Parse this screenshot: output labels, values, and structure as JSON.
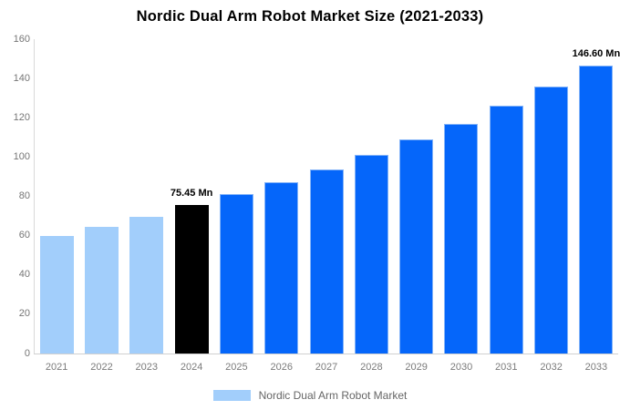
{
  "title": "Nordic Dual Arm Robot Market Size (2021-2033)",
  "chart_data": {
    "type": "bar",
    "title": "Nordic Dual Arm Robot Market Size (2021-2033)",
    "xlabel": "",
    "ylabel": "",
    "ylim": [
      0,
      160
    ],
    "yticks": [
      0,
      20,
      40,
      60,
      80,
      100,
      120,
      140,
      160
    ],
    "grid": false,
    "legend_position": "bottom-center",
    "categories": [
      "2021",
      "2022",
      "2023",
      "2024",
      "2025",
      "2026",
      "2027",
      "2028",
      "2029",
      "2030",
      "2031",
      "2032",
      "2033"
    ],
    "series": [
      {
        "name": "Nordic Dual Arm Robot Market",
        "unit": "Mn",
        "values": [
          60.0,
          64.5,
          69.5,
          75.45,
          81.0,
          87.0,
          93.8,
          101.0,
          108.8,
          117.1,
          126.0,
          136.0,
          146.6
        ]
      }
    ],
    "bar_fill_colors": [
      "#A2CEFB",
      "#A2CEFB",
      "#A2CEFB",
      "#000000",
      "#0566FA",
      "#0566FA",
      "#0566FA",
      "#0566FA",
      "#0566FA",
      "#0566FA",
      "#0566FA",
      "#0566FA",
      "#0566FA"
    ],
    "bar_border_colors": [
      "#A2CEFB",
      "#A2CEFB",
      "#A2CEFB",
      "#000000",
      "#84B4F8",
      "#84B4F8",
      "#84B4F8",
      "#84B4F8",
      "#84B4F8",
      "#84B4F8",
      "#84B4F8",
      "#84B4F8",
      "#84B4F8"
    ],
    "annotations": [
      {
        "category": "2024",
        "text": "75.45 Mn"
      },
      {
        "category": "2033",
        "text": "146.60 Mn"
      }
    ],
    "colors": {
      "historic": "#A2CEFB",
      "base_year": "#000000",
      "forecast": "#0566FA",
      "axis_line": "#d9d9d9",
      "tick_text": "#757575",
      "annotation_text": "#000000"
    }
  },
  "legend": {
    "label": "Nordic Dual Arm Robot Market",
    "swatch_color": "#A2CEFB"
  }
}
